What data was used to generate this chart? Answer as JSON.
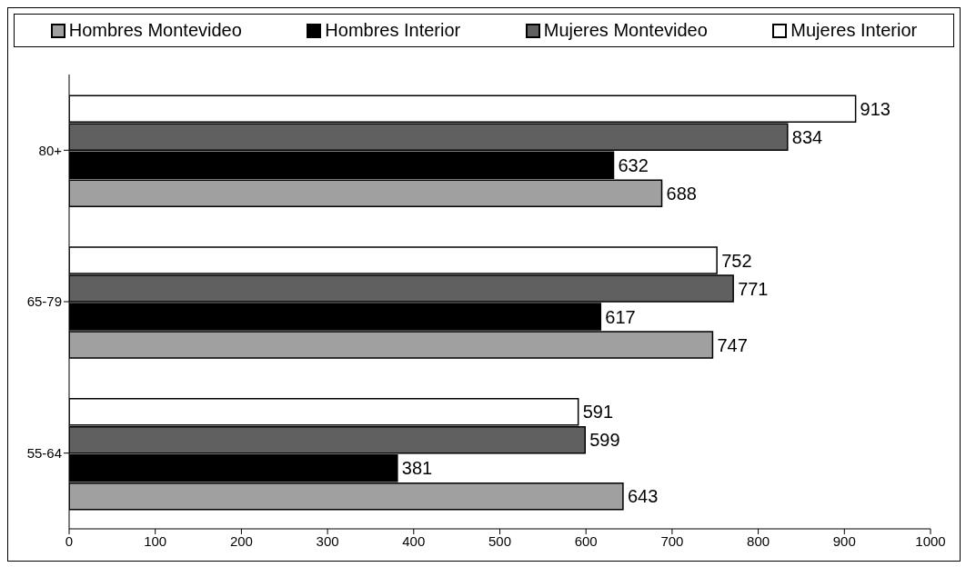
{
  "chart_data": {
    "type": "bar",
    "orientation": "horizontal",
    "categories": [
      "80+",
      "65-79",
      "55-64"
    ],
    "series": [
      {
        "name": "Hombres Montevideo",
        "color": "#a0a0a0",
        "values": [
          688,
          747,
          643
        ]
      },
      {
        "name": "Hombres Interior",
        "color": "#000000",
        "values": [
          632,
          617,
          381
        ]
      },
      {
        "name": "Mujeres Montevideo",
        "color": "#606060",
        "values": [
          834,
          771,
          599
        ]
      },
      {
        "name": "Mujeres Interior",
        "color": "#ffffff",
        "values": [
          913,
          752,
          591
        ]
      }
    ],
    "xlim": [
      0,
      1000
    ],
    "xticks": [
      0,
      100,
      200,
      300,
      400,
      500,
      600,
      700,
      800,
      900,
      1000
    ],
    "grid": false,
    "legend": "top",
    "data_labels": true
  }
}
